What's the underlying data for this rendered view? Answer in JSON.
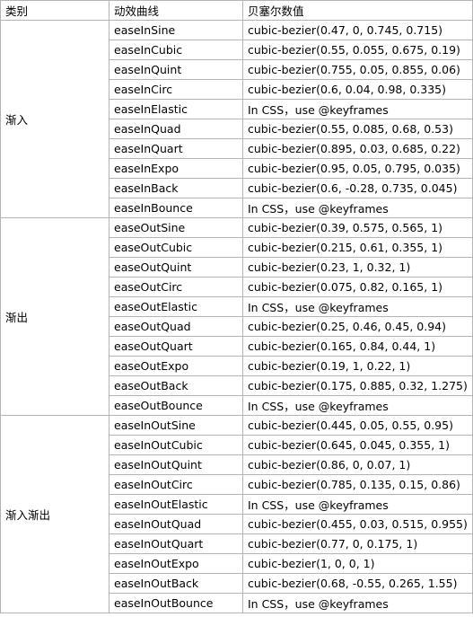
{
  "headers": {
    "category": "类别",
    "curve": "动效曲线",
    "value": "贝塞尔数值"
  },
  "groups": [
    {
      "name": "渐入",
      "rows": [
        {
          "curve": "easeInSine",
          "value": "cubic-bezier(0.47, 0, 0.745, 0.715)"
        },
        {
          "curve": "easeInCubic",
          "value": "cubic-bezier(0.55, 0.055, 0.675, 0.19)"
        },
        {
          "curve": "easeInQuint",
          "value": "cubic-bezier(0.755, 0.05, 0.855, 0.06)"
        },
        {
          "curve": "easeInCirc",
          "value": "cubic-bezier(0.6, 0.04, 0.98, 0.335)"
        },
        {
          "curve": "easeInElastic",
          "value": "In CSS，use @keyframes"
        },
        {
          "curve": "easeInQuad",
          "value": "cubic-bezier(0.55, 0.085, 0.68, 0.53)"
        },
        {
          "curve": "easeInQuart",
          "value": "cubic-bezier(0.895, 0.03, 0.685, 0.22)"
        },
        {
          "curve": "easeInExpo",
          "value": "cubic-bezier(0.95, 0.05, 0.795, 0.035)"
        },
        {
          "curve": "easeInBack",
          "value": "cubic-bezier(0.6, -0.28, 0.735, 0.045)"
        },
        {
          "curve": "easeInBounce",
          "value": "In CSS，use @keyframes"
        }
      ]
    },
    {
      "name": "渐出",
      "rows": [
        {
          "curve": "easeOutSine",
          "value": "cubic-bezier(0.39, 0.575, 0.565, 1)"
        },
        {
          "curve": "easeOutCubic",
          "value": "cubic-bezier(0.215, 0.61, 0.355, 1)"
        },
        {
          "curve": "easeOutQuint",
          "value": "cubic-bezier(0.23, 1, 0.32, 1)"
        },
        {
          "curve": "easeOutCirc",
          "value": "cubic-bezier(0.075, 0.82, 0.165, 1)"
        },
        {
          "curve": "easeOutElastic",
          "value": "In CSS，use @keyframes"
        },
        {
          "curve": "easeOutQuad",
          "value": "cubic-bezier(0.25, 0.46, 0.45, 0.94)"
        },
        {
          "curve": "easeOutQuart",
          "value": "cubic-bezier(0.165, 0.84, 0.44, 1)"
        },
        {
          "curve": "easeOutExpo",
          "value": "cubic-bezier(0.19, 1, 0.22, 1)"
        },
        {
          "curve": "easeOutBack",
          "value": "cubic-bezier(0.175, 0.885, 0.32, 1.275)"
        },
        {
          "curve": "easeOutBounce",
          "value": "In CSS，use @keyframes"
        }
      ]
    },
    {
      "name": "渐入渐出",
      "rows": [
        {
          "curve": "easeInOutSine",
          "value": "cubic-bezier(0.445, 0.05, 0.55, 0.95)"
        },
        {
          "curve": "easeInOutCubic",
          "value": "cubic-bezier(0.645, 0.045, 0.355, 1)"
        },
        {
          "curve": "easeInOutQuint",
          "value": "cubic-bezier(0.86, 0, 0.07, 1)"
        },
        {
          "curve": "easeInOutCirc",
          "value": "cubic-bezier(0.785, 0.135, 0.15, 0.86)"
        },
        {
          "curve": "easeInOutElastic",
          "value": "In CSS，use @keyframes"
        },
        {
          "curve": "easeInOutQuad",
          "value": "cubic-bezier(0.455, 0.03, 0.515, 0.955)"
        },
        {
          "curve": "easeInOutQuart",
          "value": "cubic-bezier(0.77, 0, 0.175, 1)"
        },
        {
          "curve": "easeInOutExpo",
          "value": "cubic-bezier(1, 0, 0, 1)"
        },
        {
          "curve": "easeInOutBack",
          "value": "cubic-bezier(0.68, -0.55, 0.265, 1.55)"
        },
        {
          "curve": "easeInOutBounce",
          "value": "In CSS，use @keyframes"
        }
      ]
    }
  ]
}
